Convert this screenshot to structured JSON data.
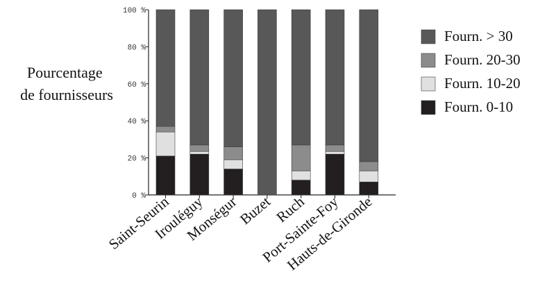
{
  "chart_data": {
    "type": "bar",
    "stacked": true,
    "ylabel_lines": [
      "Pourcentage",
      "de fournisseurs"
    ],
    "xlabel": "",
    "ylim": [
      0,
      100
    ],
    "yticks": [
      0,
      20,
      40,
      60,
      80,
      100
    ],
    "ytick_suffix": " %",
    "categories": [
      "Saint-Seurin",
      "Irouléguy",
      "Monségur",
      "Buzet",
      "Ruch",
      "Port-Sainte-Foy",
      "Hauts-de-Gironde"
    ],
    "series": [
      {
        "name": "Fourn. 0-10",
        "color": "#231f20",
        "values": [
          21,
          22,
          14,
          0,
          8,
          22,
          7
        ]
      },
      {
        "name": "Fourn. 10-20",
        "color": "#e0e0e0",
        "values": [
          13,
          1.5,
          5,
          0,
          5,
          1.5,
          6
        ]
      },
      {
        "name": "Fourn. 20-30",
        "color": "#8c8c8c",
        "values": [
          3,
          3.5,
          7,
          0,
          14,
          3.5,
          5
        ]
      },
      {
        "name": "Fourn. > 30",
        "color": "#585858",
        "values": [
          63,
          73,
          74,
          100,
          73,
          73,
          82
        ]
      }
    ],
    "legend_position": "right",
    "grid": false
  }
}
